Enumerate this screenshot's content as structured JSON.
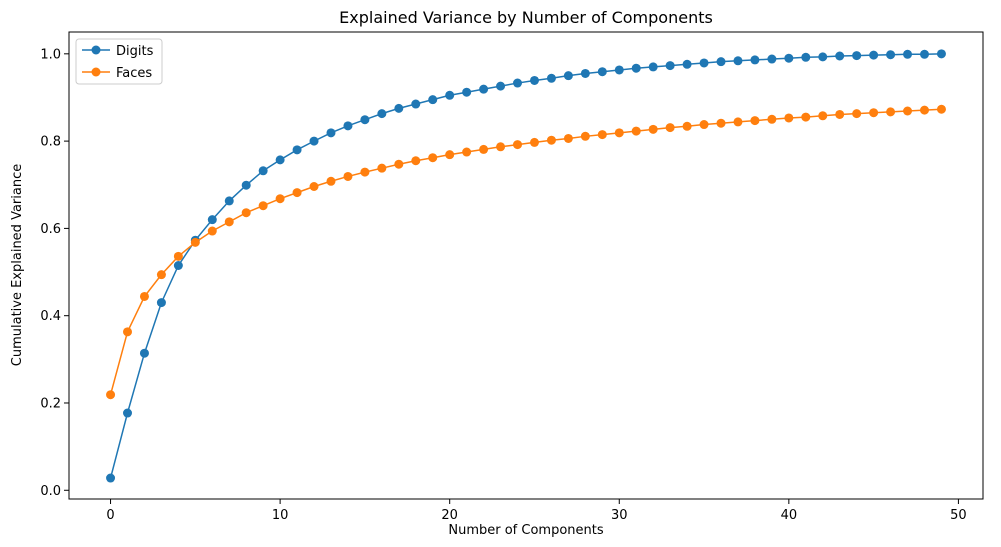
{
  "chart_data": {
    "type": "line",
    "title": "Explained Variance by Number of Components",
    "xlabel": "Number of Components",
    "ylabel": "Cumulative Explained Variance",
    "xlim": [
      -2.45,
      51.45
    ],
    "ylim": [
      -0.02,
      1.05
    ],
    "xticks": [
      0,
      10,
      20,
      30,
      40,
      50
    ],
    "yticks": [
      0.0,
      0.2,
      0.4,
      0.6,
      0.8,
      1.0
    ],
    "xtick_labels": [
      "0",
      "10",
      "20",
      "30",
      "40",
      "50"
    ],
    "ytick_labels": [
      "0.0",
      "0.2",
      "0.4",
      "0.6",
      "0.8",
      "1.0"
    ],
    "grid": false,
    "legend_position": "top-left",
    "x": [
      0,
      1,
      2,
      3,
      4,
      5,
      6,
      7,
      8,
      9,
      10,
      11,
      12,
      13,
      14,
      15,
      16,
      17,
      18,
      19,
      20,
      21,
      22,
      23,
      24,
      25,
      26,
      27,
      28,
      29,
      30,
      31,
      32,
      33,
      34,
      35,
      36,
      37,
      38,
      39,
      40,
      41,
      42,
      43,
      44,
      45,
      46,
      47,
      48,
      49
    ],
    "series": [
      {
        "name": "Digits",
        "color": "#1f77b4",
        "values": [
          0.028,
          0.177,
          0.314,
          0.43,
          0.515,
          0.573,
          0.62,
          0.663,
          0.699,
          0.732,
          0.757,
          0.78,
          0.8,
          0.819,
          0.835,
          0.849,
          0.863,
          0.875,
          0.885,
          0.895,
          0.905,
          0.912,
          0.919,
          0.926,
          0.933,
          0.939,
          0.944,
          0.95,
          0.955,
          0.959,
          0.963,
          0.967,
          0.97,
          0.973,
          0.976,
          0.979,
          0.982,
          0.984,
          0.986,
          0.988,
          0.99,
          0.992,
          0.993,
          0.995,
          0.996,
          0.997,
          0.998,
          0.999,
          0.999,
          1.0
        ]
      },
      {
        "name": "Faces",
        "color": "#ff7f0e",
        "values": [
          0.219,
          0.363,
          0.444,
          0.494,
          0.536,
          0.568,
          0.594,
          0.615,
          0.636,
          0.652,
          0.668,
          0.682,
          0.696,
          0.708,
          0.719,
          0.729,
          0.738,
          0.747,
          0.755,
          0.762,
          0.769,
          0.775,
          0.781,
          0.787,
          0.792,
          0.797,
          0.802,
          0.806,
          0.811,
          0.815,
          0.819,
          0.823,
          0.827,
          0.831,
          0.834,
          0.838,
          0.841,
          0.844,
          0.847,
          0.85,
          0.853,
          0.855,
          0.858,
          0.861,
          0.863,
          0.865,
          0.867,
          0.869,
          0.871,
          0.873
        ]
      }
    ]
  }
}
